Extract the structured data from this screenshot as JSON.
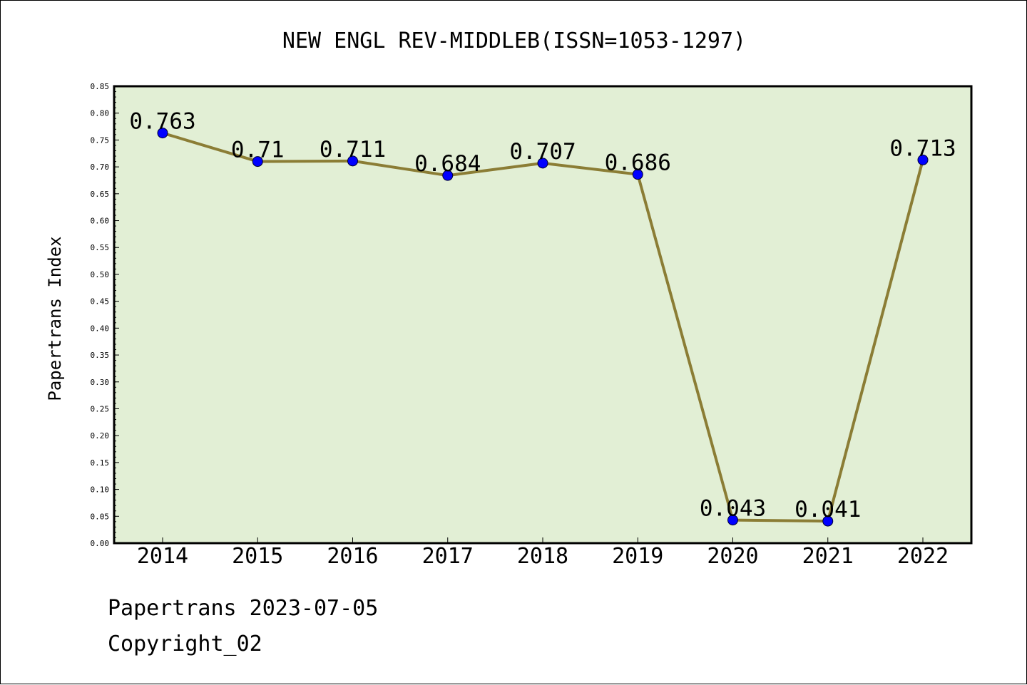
{
  "chart_data": {
    "type": "line",
    "title": "NEW ENGL REV-MIDDLEB(ISSN=1053-1297)",
    "xlabel": "",
    "ylabel": "Papertrans Index",
    "categories": [
      "2014",
      "2015",
      "2016",
      "2017",
      "2018",
      "2019",
      "2020",
      "2021",
      "2022"
    ],
    "values": [
      0.763,
      0.71,
      0.711,
      0.684,
      0.707,
      0.686,
      0.043,
      0.041,
      0.713
    ],
    "data_labels": [
      "0.763",
      "0.71",
      "0.711",
      "0.684",
      "0.707",
      "0.686",
      "0.043",
      "0.041",
      "0.713"
    ],
    "ylim": [
      0,
      0.85
    ],
    "yticks": [
      "0.00",
      "0.05",
      "0.10",
      "0.15",
      "0.20",
      "0.25",
      "0.30",
      "0.35",
      "0.40",
      "0.45",
      "0.50",
      "0.55",
      "0.60",
      "0.65",
      "0.70",
      "0.75",
      "0.80",
      "0.85"
    ],
    "grid": false,
    "colors": {
      "plot_background": "#e2efd5",
      "line": "#8b7d35",
      "marker": "#0000ff"
    }
  },
  "footer": {
    "date_text": "Papertrans 2023-07-05",
    "copyright_text": "Copyright_02"
  }
}
